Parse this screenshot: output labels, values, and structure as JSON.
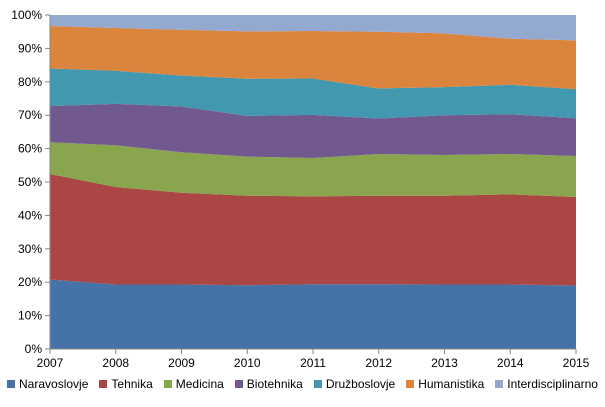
{
  "chart_data": {
    "type": "area",
    "stacked": true,
    "percent": true,
    "categories": [
      "2007",
      "2008",
      "2009",
      "2010",
      "2011",
      "2012",
      "2013",
      "2014",
      "2015"
    ],
    "y_ticks": [
      "0%",
      "10%",
      "20%",
      "30%",
      "40%",
      "50%",
      "60%",
      "70%",
      "80%",
      "90%",
      "100%"
    ],
    "ylim": [
      0,
      100
    ],
    "grid": false,
    "legend_position": "bottom",
    "series": [
      {
        "name": "Naravoslovje",
        "color": "#4572A7",
        "values": [
          20.8,
          19.3,
          19.3,
          19.1,
          19.4,
          19.4,
          19.3,
          19.3,
          19.0
        ]
      },
      {
        "name": "Tehnika",
        "color": "#AA4643",
        "values": [
          31.6,
          29.2,
          27.5,
          26.8,
          26.3,
          26.5,
          26.6,
          27.0,
          26.5
        ]
      },
      {
        "name": "Medicina",
        "color": "#89A54E",
        "values": [
          9.5,
          12.5,
          12.1,
          11.7,
          11.5,
          12.5,
          12.2,
          12.1,
          12.3
        ]
      },
      {
        "name": "Biotehnika",
        "color": "#71588F",
        "values": [
          10.8,
          12.4,
          13.7,
          12.2,
          12.9,
          10.6,
          11.9,
          11.9,
          11.3
        ]
      },
      {
        "name": "Družboslovje",
        "color": "#4198AF",
        "values": [
          11.3,
          9.9,
          9.3,
          11.1,
          10.9,
          9.0,
          8.4,
          8.8,
          8.7
        ]
      },
      {
        "name": "Humanistika",
        "color": "#DB843D",
        "values": [
          12.7,
          12.8,
          13.7,
          14.2,
          14.2,
          17.0,
          16.1,
          13.8,
          14.6
        ]
      },
      {
        "name": "Interdisciplinarno",
        "color": "#93A9CF",
        "values": [
          3.3,
          3.9,
          4.4,
          4.9,
          4.8,
          5.0,
          5.5,
          7.1,
          7.6
        ]
      }
    ]
  }
}
